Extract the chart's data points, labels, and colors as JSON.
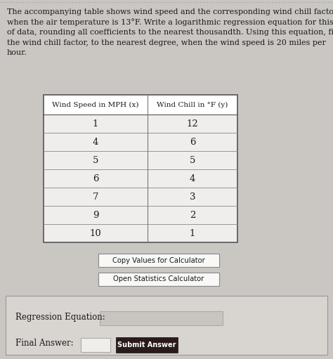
{
  "title_lines": [
    "The accompanying table shows wind speed and the corresponding wind chill factor",
    "when the air temperature is 13°F. Write a logarithmic regression equation for this set",
    "of data, rounding all coefficients to the nearest thousandth. Using this equation, find",
    "the wind chill factor, to the nearest degree, when the wind speed is 20 miles per",
    "hour."
  ],
  "title_italic_words": [
    "to",
    "the",
    "nearest",
    "thousandth.",
    "to",
    "the",
    "nearest",
    "degree,"
  ],
  "col1_header": "Wind Speed in MPH (x)",
  "col2_header": "Wind Chill in °F (y)",
  "wind_speeds": [
    1,
    4,
    5,
    6,
    7,
    9,
    10
  ],
  "wind_chills": [
    12,
    6,
    5,
    4,
    3,
    2,
    1
  ],
  "btn1_text": "Copy Values for Calculator",
  "btn2_text": "Open Statistics Calculator",
  "regression_label": "Regression Equation:",
  "final_answer_label": "Final Answer:",
  "submit_btn_text": "Submit Answer",
  "bg_color": "#cac6c2",
  "table_bg": "#ffffff",
  "cell_bg": "#e8e5e2",
  "bottom_panel_bg": "#dedad6",
  "title_fontsize": 8.0,
  "table_fontsize": 9.5
}
